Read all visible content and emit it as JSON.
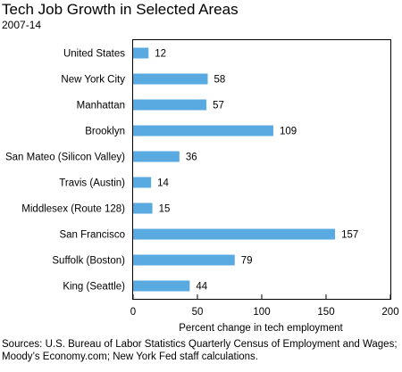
{
  "chart_data": {
    "type": "bar",
    "orientation": "horizontal",
    "title": "Tech Job Growth in Selected Areas",
    "subtitle": "2007-14",
    "xlabel": "Percent change in tech employment",
    "ylabel": "",
    "categories": [
      "United States",
      "New York City",
      "Manhattan",
      "Brooklyn",
      "San Mateo (Silicon Valley)",
      "Travis (Austin)",
      "Middlesex (Route 128)",
      "San Francisco",
      "Suffolk (Boston)",
      "King (Seattle)"
    ],
    "values": [
      12,
      58,
      57,
      109,
      36,
      14,
      15,
      157,
      79,
      44
    ],
    "value_labels": [
      "12",
      "58",
      "57",
      "109",
      "36",
      "14",
      "15",
      "157",
      "79",
      "44"
    ],
    "xlim": [
      0,
      200
    ],
    "xticks": [
      0,
      50,
      100,
      150,
      200
    ],
    "xtick_labels": [
      "0",
      "50",
      "100",
      "150",
      "200"
    ],
    "grid": false,
    "legend": "none",
    "bar_color": "#5aaae2",
    "source": "Sources: U.S. Bureau of Labor Statistics Quarterly Census of Employment and Wages; Moody’s Economy.com; New York Fed staff calculations."
  }
}
